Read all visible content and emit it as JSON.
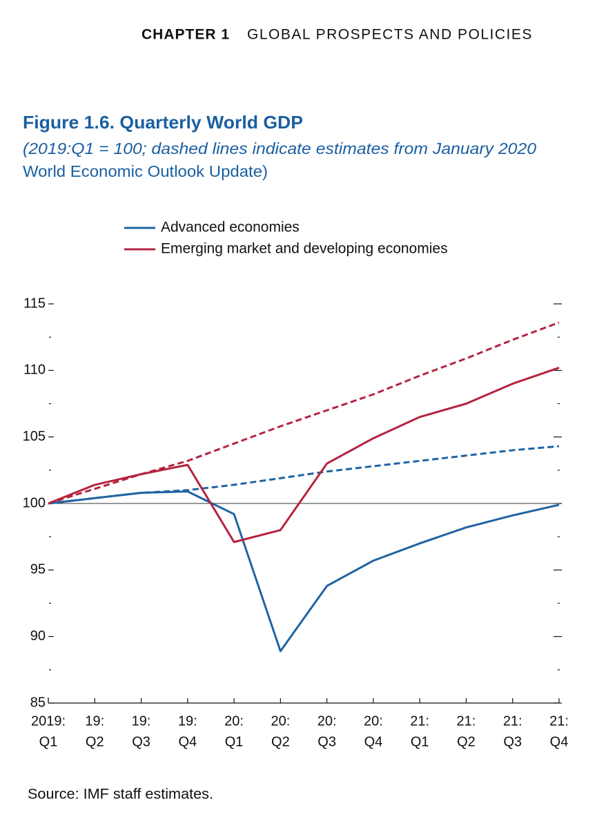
{
  "header": {
    "chapter": "CHAPTER 1",
    "section": "GLOBAL PROSPECTS AND POLICIES"
  },
  "chart_data": {
    "type": "line",
    "title": "Figure 1.6. Quarterly World GDP",
    "subtitle": [
      "(2019:Q1 = 100; dashed lines indicate estimates from January 2020",
      "World Economic Outlook Update)"
    ],
    "categories": [
      [
        "2019:",
        "Q1"
      ],
      [
        "19:",
        "Q2"
      ],
      [
        "19:",
        "Q3"
      ],
      [
        "19:",
        "Q4"
      ],
      [
        "20:",
        "Q1"
      ],
      [
        "20:",
        "Q2"
      ],
      [
        "20:",
        "Q3"
      ],
      [
        "20:",
        "Q4"
      ],
      [
        "21:",
        "Q1"
      ],
      [
        "21:",
        "Q2"
      ],
      [
        "21:",
        "Q3"
      ],
      [
        "21:",
        "Q4"
      ]
    ],
    "series": [
      {
        "name": "Advanced economies",
        "color": "#1f63a3",
        "values": [
          100,
          100.4,
          100.8,
          100.9,
          99.2,
          88.9,
          93.8,
          95.7,
          97.0,
          98.2,
          99.1,
          99.9
        ]
      },
      {
        "name": "Emerging market and developing economies",
        "color": "#b5233f",
        "values": [
          100,
          101.4,
          102.2,
          102.9,
          97.1,
          98.0,
          103.0,
          104.9,
          106.5,
          107.5,
          109.0,
          110.2
        ]
      },
      {
        "color": "#1f63a3",
        "dashed": true,
        "values": [
          100,
          100.4,
          100.8,
          101.0,
          101.4,
          101.9,
          102.4,
          102.8,
          103.2,
          103.6,
          104.0,
          104.3
        ]
      },
      {
        "color": "#b5233f",
        "dashed": true,
        "values": [
          100,
          101.1,
          102.2,
          103.2,
          104.5,
          105.8,
          107.0,
          108.2,
          109.6,
          110.9,
          112.3,
          113.6
        ]
      }
    ],
    "ylim": [
      85,
      115
    ],
    "yticks": [
      85,
      90,
      95,
      100,
      105,
      110,
      115
    ],
    "yminor_ticks": [
      87.5,
      92.5,
      97.5,
      102.5,
      107.5,
      112.5
    ],
    "reference_line": 100,
    "source": "Source: IMF staff estimates."
  }
}
